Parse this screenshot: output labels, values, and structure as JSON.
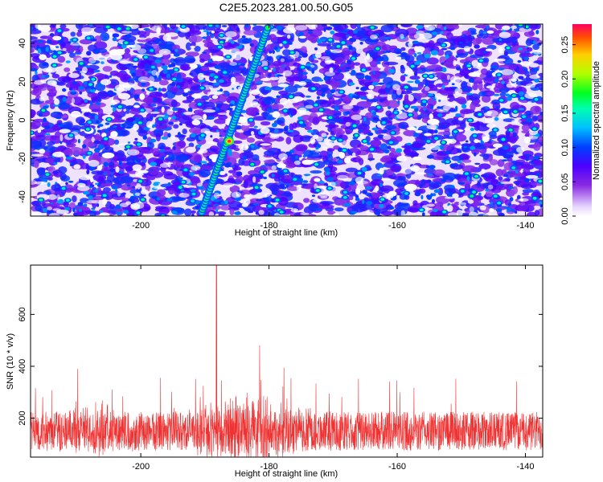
{
  "title": "C2E5.2023.281.00.50.G05",
  "chart_data": [
    {
      "type": "heatmap",
      "xlabel": "Height of straight line (km)",
      "ylabel": "Frequency (Hz)",
      "xlim": [
        -217.2,
        -137.3
      ],
      "ylim": [
        -50,
        50
      ],
      "x_ticks": [
        -200,
        -180,
        -160,
        -140
      ],
      "y_ticks": [
        -40,
        -20,
        0,
        20,
        40
      ],
      "colorbar": {
        "label": "Normalized spectral amplitude",
        "range": [
          0.0,
          0.28
        ],
        "ticks": [
          "0.00",
          "0.05",
          "0.10",
          "0.15",
          "0.20",
          "0.25"
        ]
      },
      "features": [
        {
          "name": "",
          "type": "ridge",
          "x_start": -190.5,
          "y_start": -48,
          "x_end": -180.2,
          "y_end": 48,
          "peak_x": -186.2,
          "peak_y": -11,
          "peak_value": 0.27
        }
      ]
    },
    {
      "type": "line",
      "xlabel": "Height of straight line (km)",
      "ylabel": "SNR (10 * v/v)",
      "xlim": [
        -217.2,
        -137.3
      ],
      "ylim": [
        50,
        790
      ],
      "x_ticks": [
        -200,
        -180,
        -160,
        -140
      ],
      "y_ticks": [
        200,
        400,
        600
      ],
      "series": [
        {
          "name": "",
          "color": "#f03232",
          "baseline_mean": 150,
          "peak_x": -188.2,
          "peak_y": 790
        }
      ]
    }
  ]
}
